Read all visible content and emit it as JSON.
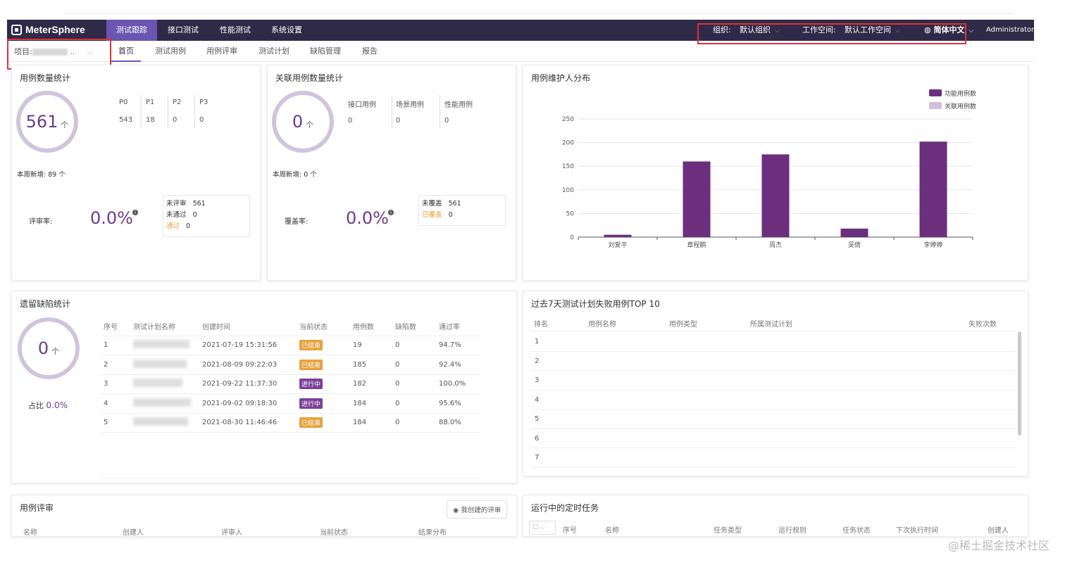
{
  "header": {
    "brand": "MeterSphere",
    "nav": [
      "测试跟踪",
      "接口测试",
      "性能测试",
      "系统设置"
    ],
    "org_label": "组织:",
    "org_value": "默认组织",
    "ws_label": "工作空间:",
    "ws_value": "默认工作空间",
    "lang": "简体中文",
    "user": "Administrator"
  },
  "subnav": {
    "project_label": "项目:",
    "tabs": [
      "首页",
      "测试用例",
      "用例评审",
      "测试计划",
      "缺陷管理",
      "报告"
    ]
  },
  "case_stats": {
    "title": "用例数量统计",
    "total": "561",
    "unit": "个",
    "levels": [
      "P0",
      "P1",
      "P2",
      "P3"
    ],
    "level_values": [
      "543",
      "18",
      "0",
      "0"
    ],
    "weekly_label": "本周新增:",
    "weekly_value": "89",
    "weekly_unit": "个",
    "review_label": "评审率:",
    "review_rate": "0.0%",
    "unreviewed_label": "未评审",
    "unreviewed": "561",
    "notpass_label": "未通过",
    "notpass": "0",
    "pass_label": "通过",
    "pass": "0"
  },
  "related_stats": {
    "title": "关联用例数量统计",
    "total": "0",
    "unit": "个",
    "types": [
      "接口用例",
      "场景用例",
      "性能用例"
    ],
    "type_values": [
      "0",
      "0",
      "0"
    ],
    "weekly_label": "本周新增:",
    "weekly_value": "0",
    "weekly_unit": "个",
    "coverage_label": "覆盖率:",
    "coverage_rate": "0.0%",
    "uncovered_label": "未覆盖",
    "uncovered": "561",
    "covered_label": "已覆盖",
    "covered": "0"
  },
  "maintainer": {
    "title": "用例维护人分布"
  },
  "chart_data": {
    "type": "bar",
    "categories": [
      "刘爱平",
      "章程鹏",
      "周杰",
      "吴倩",
      "李婷婷"
    ],
    "series": [
      {
        "name": "功能用例数",
        "values": [
          5,
          160,
          175,
          18,
          202
        ],
        "color": "#6b2f7e"
      },
      {
        "name": "关联用例数",
        "values": [
          0,
          0,
          0,
          0,
          0
        ],
        "color": "#d0c0dc"
      }
    ],
    "ylim": [
      0,
      250
    ],
    "yticks": [
      0,
      50,
      100,
      150,
      200,
      250
    ],
    "legend": "top-right",
    "grid": true
  },
  "defects": {
    "title": "遗留缺陷统计",
    "total": "0",
    "unit": "个",
    "ratio_label": "占比",
    "ratio": "0.0%",
    "headers": [
      "序号",
      "测试计划名称",
      "创建时间",
      "当前状态",
      "用例数",
      "缺陷数",
      "通过率"
    ],
    "rows": [
      {
        "no": "1",
        "created": "2021-07-19 15:31:56",
        "status": "已结束",
        "cases": "19",
        "defects": "0",
        "rate": "94.7%"
      },
      {
        "no": "2",
        "created": "2021-08-09 09:22:03",
        "status": "已结束",
        "cases": "185",
        "defects": "0",
        "rate": "92.4%"
      },
      {
        "no": "3",
        "created": "2021-09-22 11:37:30",
        "status": "进行中",
        "cases": "182",
        "defects": "0",
        "rate": "100.0%"
      },
      {
        "no": "4",
        "created": "2021-09-02 09:18:30",
        "status": "进行中",
        "cases": "184",
        "defects": "0",
        "rate": "95.6%"
      },
      {
        "no": "5",
        "created": "2021-08-30 11:46:46",
        "status": "已结束",
        "cases": "184",
        "defects": "0",
        "rate": "88.0%"
      }
    ]
  },
  "failures": {
    "title": "过去7天测试计划失败用例TOP 10",
    "headers": [
      "排名",
      "用例名称",
      "用例类型",
      "所属测试计划",
      "失败次数"
    ],
    "ranks": [
      "1",
      "2",
      "3",
      "4",
      "5",
      "6",
      "7"
    ]
  },
  "review": {
    "title": "用例评审",
    "my_btn": "我创建的评审",
    "headers": [
      "名称",
      "创建人",
      "评审人",
      "当前状态",
      "结果分布"
    ]
  },
  "tasks": {
    "title": "运行中的定时任务",
    "headers": [
      "序号",
      "名称",
      "任务类型",
      "运行规则",
      "任务状态",
      "下次执行时间",
      "创建人"
    ]
  },
  "watermark": "@稀土掘金技术社区"
}
